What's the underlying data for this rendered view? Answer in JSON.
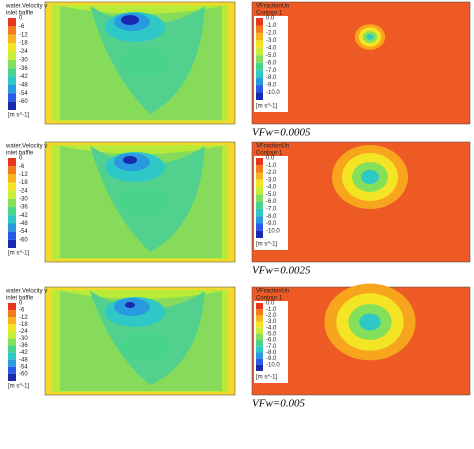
{
  "panels": [
    {
      "left": {
        "title": [
          "water.Velocity v",
          "inlet baffle"
        ],
        "ticks": [
          "0",
          "-6",
          "-12",
          "-18",
          "-24",
          "-30",
          "-36",
          "-42",
          "-48",
          "-54",
          "-60"
        ],
        "unit": "[m s^-1]"
      },
      "right": {
        "title": [
          "VFractionUn",
          "Contour 1"
        ],
        "ticks": [
          "0.0",
          "-1.0",
          "-2.0",
          "-3.0",
          "-4.0",
          "-5.0",
          "-6.0",
          "-7.0",
          "-8.0",
          "-9.0",
          "-10.0"
        ],
        "unit": "[m s^-1]"
      },
      "caption": "VFw=0.0005"
    },
    {
      "left": {
        "title": [
          "water.Velocity v",
          "inlet baffle"
        ],
        "ticks": [
          "0",
          "-6",
          "-12",
          "-18",
          "-24",
          "-30",
          "-36",
          "-42",
          "-48",
          "-54",
          "-60"
        ],
        "unit": "[m s^-1]"
      },
      "right": {
        "title": [
          "VFractionUn",
          "Contour 1"
        ],
        "ticks": [
          "0.0",
          "-1.0",
          "-2.0",
          "-3.0",
          "-4.0",
          "-5.0",
          "-6.0",
          "-7.0",
          "-8.0",
          "-9.0",
          "-10.0"
        ],
        "unit": "[m s^-1]"
      },
      "caption": "VFw=0.0025"
    },
    {
      "left": {
        "title": [
          "water.Velocity v",
          "inlet baffle"
        ],
        "ticks": [
          "0",
          "-6",
          "-12",
          "-18",
          "-24",
          "-30",
          "-36",
          "-42",
          "-48",
          "-54",
          "-60"
        ],
        "unit": "[m s^-1]"
      },
      "right": {
        "title": [
          "VFractionUn",
          "Contour 1"
        ],
        "ticks": [
          "0.0",
          "-1.0",
          "-2.0",
          "-3.0",
          "-4.0",
          "-5.0",
          "-6.0",
          "-7.0",
          "-8.0",
          "-9.0",
          "-10.0"
        ],
        "unit": "[m s^-1]"
      },
      "caption": "VFw=0.005"
    }
  ]
}
